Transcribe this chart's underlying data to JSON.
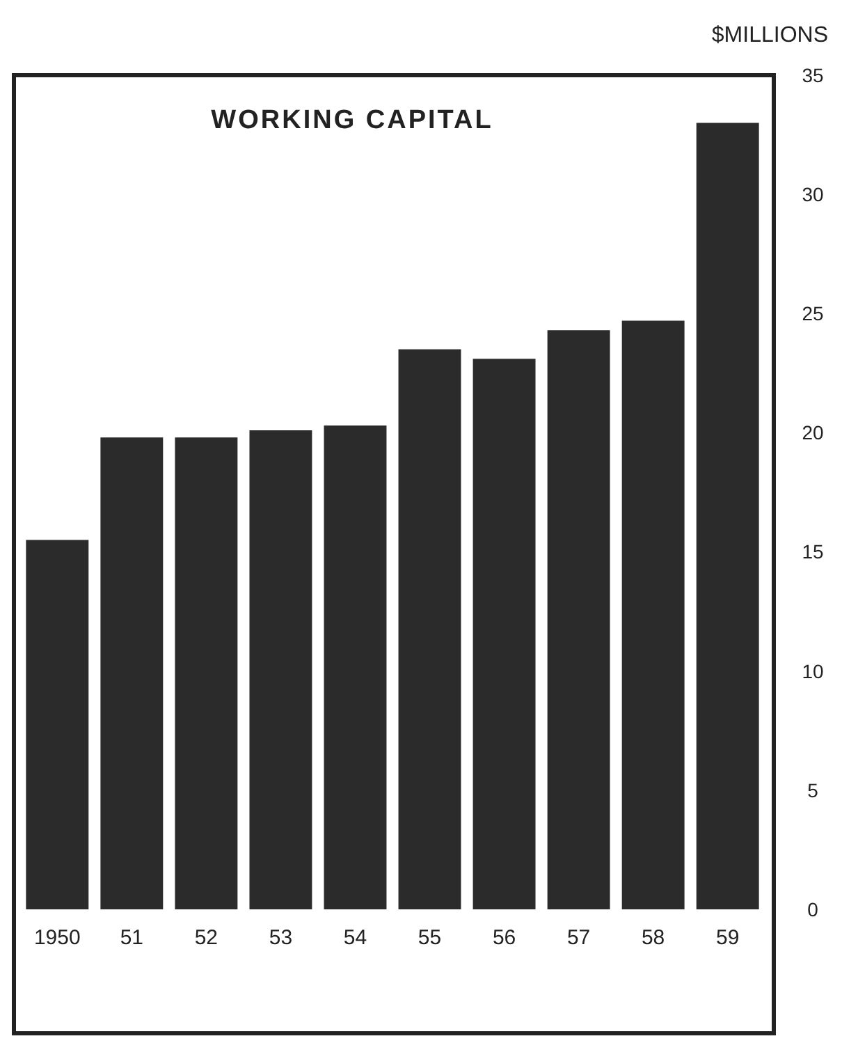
{
  "chart_data": {
    "type": "bar",
    "title": "WORKING CAPITAL",
    "ylabel": "$MILLIONS",
    "categories": [
      "1950",
      "51",
      "52",
      "53",
      "54",
      "55",
      "56",
      "57",
      "58",
      "59"
    ],
    "values": [
      15.5,
      19.8,
      19.8,
      20.1,
      20.3,
      23.5,
      23.1,
      24.3,
      24.7,
      33.0
    ],
    "color": "#2b2b2b",
    "ylim": [
      0,
      35
    ],
    "yticks": [
      0,
      5,
      10,
      15,
      20,
      25,
      30,
      35
    ],
    "grid": false
  }
}
